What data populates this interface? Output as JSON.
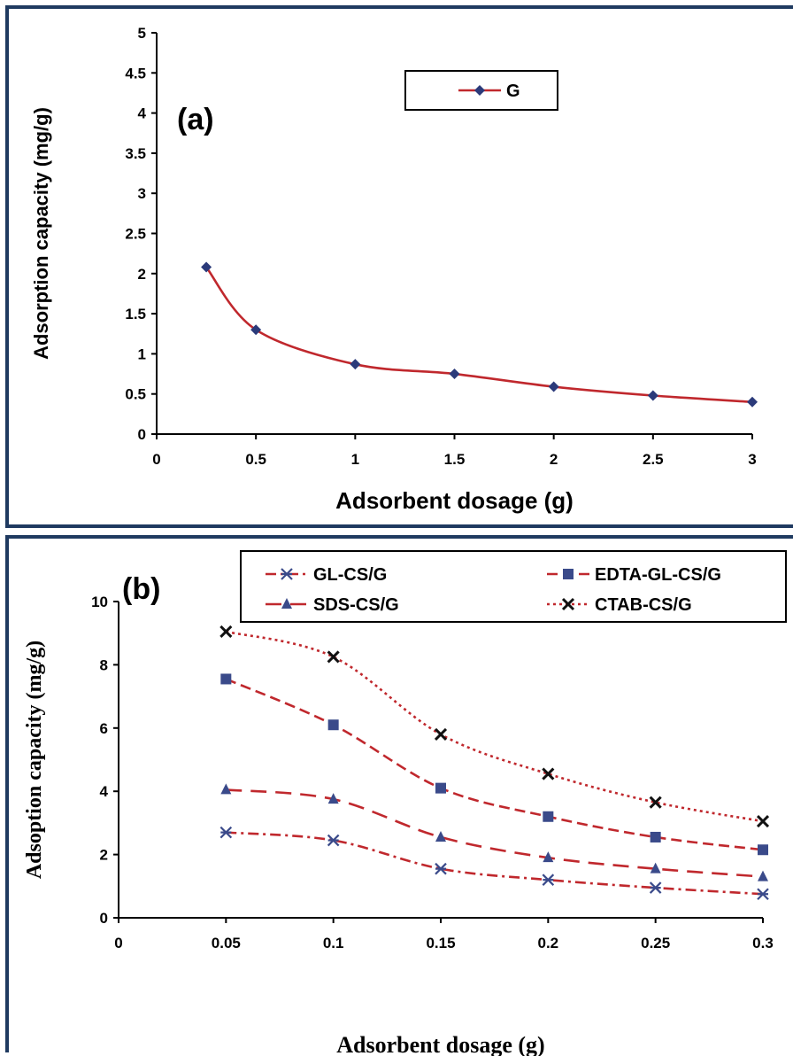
{
  "chart_data": [
    {
      "type": "line",
      "panel_label": "(a)",
      "xlabel": "Adsorbent dosage (g)",
      "ylabel": "Adsorption capacity (mg/g)",
      "xlim": [
        0,
        3
      ],
      "ylim": [
        0,
        5
      ],
      "x_ticks": [
        "0",
        "0.5",
        "1",
        "1.5",
        "2",
        "2.5",
        "3"
      ],
      "y_ticks": [
        "0",
        "0.5",
        "1",
        "1.5",
        "2",
        "2.5",
        "3",
        "3.5",
        "4",
        "4.5",
        "5"
      ],
      "legend_position": "top-center",
      "series": [
        {
          "name": "G",
          "color": "#c0282d",
          "marker": "diamond",
          "marker_color": "#2b3a7a",
          "line_style": "solid",
          "x": [
            0.25,
            0.5,
            1,
            1.5,
            2,
            2.5,
            3
          ],
          "y": [
            2.08,
            1.3,
            0.87,
            0.75,
            0.59,
            0.48,
            0.4
          ]
        }
      ]
    },
    {
      "type": "line",
      "panel_label": "(b)",
      "xlabel": "Adsorbent dosage (g)",
      "ylabel": "Adsoption capacity (mg/g)",
      "xlim": [
        0,
        0.3
      ],
      "ylim": [
        0,
        10
      ],
      "x_ticks": [
        "0",
        "0.05",
        "0.1",
        "0.15",
        "0.2",
        "0.25",
        "0.3"
      ],
      "y_ticks": [
        "0",
        "2",
        "4",
        "6",
        "8",
        "10"
      ],
      "legend_position": "top",
      "series": [
        {
          "name": "GL-CS/G",
          "color": "#c0282d",
          "marker": "asterisk",
          "marker_color": "#3a4a8a",
          "line_style": "dashdot",
          "x": [
            0.05,
            0.1,
            0.15,
            0.2,
            0.25,
            0.3
          ],
          "y": [
            2.7,
            2.45,
            1.55,
            1.2,
            0.95,
            0.75
          ]
        },
        {
          "name": "EDTA-GL-CS/G",
          "color": "#c0282d",
          "marker": "square",
          "marker_color": "#3a4a8a",
          "line_style": "dashed",
          "x": [
            0.05,
            0.1,
            0.15,
            0.2,
            0.25,
            0.3
          ],
          "y": [
            7.55,
            6.1,
            4.1,
            3.2,
            2.55,
            2.15
          ]
        },
        {
          "name": "SDS-CS/G",
          "color": "#c0282d",
          "marker": "triangle",
          "marker_color": "#3a4a8a",
          "line_style": "longdash",
          "x": [
            0.05,
            0.1,
            0.15,
            0.2,
            0.25,
            0.3
          ],
          "y": [
            4.05,
            3.75,
            2.55,
            1.9,
            1.55,
            1.3
          ]
        },
        {
          "name": "CTAB-CS/G",
          "color": "#c0282d",
          "marker": "x",
          "marker_color": "#111111",
          "line_style": "dotted",
          "x": [
            0.05,
            0.1,
            0.15,
            0.2,
            0.25,
            0.3
          ],
          "y": [
            9.05,
            8.25,
            5.8,
            4.55,
            3.65,
            3.05
          ]
        }
      ]
    }
  ]
}
